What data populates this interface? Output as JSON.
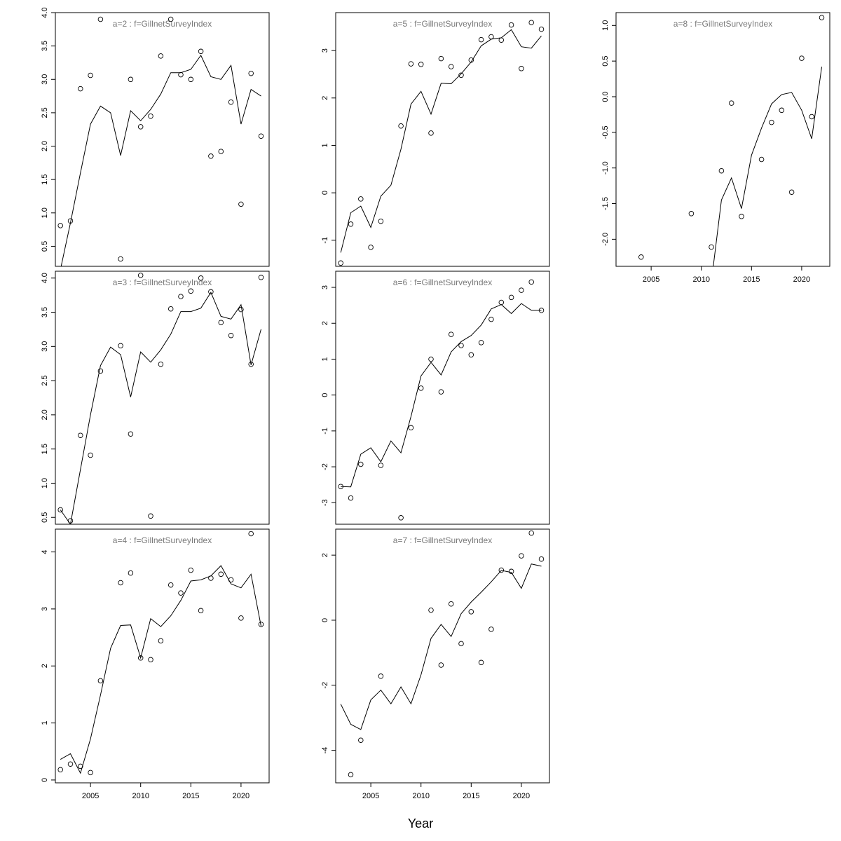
{
  "figure": {
    "xlabel": "Year"
  },
  "chart_data": [
    {
      "type": "scatter",
      "title": "a=2  :  f=GillnetSurveyIndex",
      "xlim": [
        2001.5,
        2022.8
      ],
      "ylim": [
        0.2,
        4.0
      ],
      "yticks": [
        0.5,
        1.0,
        1.5,
        2.0,
        2.5,
        3.0,
        3.5,
        4.0
      ],
      "ytick_labels": [
        "0.5",
        "1.0",
        "1.5",
        "2.0",
        "2.5",
        "3.0",
        "3.5",
        "4.0"
      ],
      "xticks": [],
      "xtick_labels": [],
      "series": [
        {
          "kind": "points",
          "x": [
            2002,
            2003,
            2004,
            2005,
            2006,
            2008,
            2009,
            2010,
            2011,
            2012,
            2013,
            2014,
            2015,
            2016,
            2017,
            2018,
            2019,
            2020,
            2021,
            2022
          ],
          "y": [
            0.81,
            0.88,
            2.86,
            3.06,
            3.9,
            0.31,
            3.0,
            2.29,
            2.45,
            3.35,
            3.9,
            3.07,
            3.0,
            3.42,
            1.85,
            1.92,
            2.66,
            1.13,
            3.09,
            2.15
          ]
        },
        {
          "kind": "line",
          "x": [
            2002,
            2003,
            2004,
            2005,
            2006,
            2007,
            2008,
            2009,
            2010,
            2011,
            2012,
            2013,
            2014,
            2015,
            2016,
            2017,
            2018,
            2019,
            2020,
            2021,
            2022
          ],
          "y": [
            0.15,
            0.85,
            1.6,
            2.33,
            2.6,
            2.5,
            1.86,
            2.53,
            2.38,
            2.55,
            2.78,
            3.1,
            3.1,
            3.15,
            3.36,
            3.04,
            3.0,
            3.21,
            2.33,
            2.85,
            2.75
          ]
        }
      ]
    },
    {
      "type": "scatter",
      "title": "a=3  :  f=GillnetSurveyIndex",
      "xlim": [
        2001.5,
        2022.8
      ],
      "ylim": [
        0.4,
        4.1
      ],
      "yticks": [
        0.5,
        1.0,
        1.5,
        2.0,
        2.5,
        3.0,
        3.5,
        4.0
      ],
      "ytick_labels": [
        "0.5",
        "1.0",
        "1.5",
        "2.0",
        "2.5",
        "3.0",
        "3.5",
        "4.0"
      ],
      "xticks": [],
      "xtick_labels": [],
      "series": [
        {
          "kind": "points",
          "x": [
            2002,
            2003,
            2004,
            2005,
            2006,
            2008,
            2009,
            2010,
            2011,
            2012,
            2013,
            2014,
            2015,
            2016,
            2017,
            2018,
            2019,
            2020,
            2021,
            2022
          ],
          "y": [
            0.61,
            0.45,
            1.7,
            1.41,
            2.64,
            3.01,
            1.72,
            4.04,
            0.52,
            2.74,
            3.55,
            3.73,
            3.81,
            4.0,
            3.8,
            3.35,
            3.16,
            3.54,
            2.74,
            4.01
          ]
        },
        {
          "kind": "line",
          "x": [
            2002,
            2003,
            2004,
            2005,
            2006,
            2007,
            2008,
            2009,
            2010,
            2011,
            2012,
            2013,
            2014,
            2015,
            2016,
            2017,
            2018,
            2019,
            2020,
            2021,
            2022
          ],
          "y": [
            0.61,
            0.4,
            1.2,
            2.0,
            2.72,
            2.99,
            2.88,
            2.26,
            2.92,
            2.77,
            2.95,
            3.18,
            3.51,
            3.51,
            3.56,
            3.79,
            3.44,
            3.4,
            3.61,
            2.73,
            3.25
          ]
        }
      ]
    },
    {
      "type": "scatter",
      "title": "a=4  :  f=GillnetSurveyIndex",
      "xlim": [
        2001.5,
        2022.8
      ],
      "ylim": [
        -0.05,
        4.4
      ],
      "yticks": [
        0,
        1,
        2,
        3,
        4
      ],
      "ytick_labels": [
        "0",
        "1",
        "2",
        "3",
        "4"
      ],
      "xticks": [
        2005,
        2010,
        2015,
        2020
      ],
      "xtick_labels": [
        "2005",
        "2010",
        "2015",
        "2020"
      ],
      "series": [
        {
          "kind": "points",
          "x": [
            2002,
            2003,
            2004,
            2005,
            2006,
            2008,
            2009,
            2010,
            2011,
            2012,
            2013,
            2014,
            2015,
            2016,
            2017,
            2018,
            2019,
            2020,
            2021,
            2022
          ],
          "y": [
            0.18,
            0.28,
            0.24,
            0.13,
            1.74,
            3.46,
            3.63,
            2.14,
            2.11,
            2.44,
            3.42,
            3.28,
            3.68,
            2.97,
            3.54,
            3.61,
            3.51,
            2.84,
            4.32,
            2.73
          ]
        },
        {
          "kind": "line",
          "x": [
            2002,
            2003,
            2004,
            2005,
            2006,
            2007,
            2008,
            2009,
            2010,
            2011,
            2012,
            2013,
            2014,
            2015,
            2016,
            2017,
            2018,
            2019,
            2020,
            2021,
            2022
          ],
          "y": [
            0.36,
            0.46,
            0.12,
            0.72,
            1.49,
            2.31,
            2.71,
            2.72,
            2.14,
            2.83,
            2.69,
            2.88,
            3.15,
            3.49,
            3.51,
            3.58,
            3.76,
            3.44,
            3.37,
            3.61,
            2.7
          ]
        }
      ]
    },
    {
      "type": "scatter",
      "title": "a=5  :  f=GillnetSurveyIndex",
      "xlim": [
        2001.5,
        2022.8
      ],
      "ylim": [
        -1.55,
        3.8
      ],
      "yticks": [
        -1,
        0,
        1,
        2,
        3
      ],
      "ytick_labels": [
        "-1",
        "0",
        "1",
        "2",
        "3"
      ],
      "xticks": [],
      "xtick_labels": [],
      "series": [
        {
          "kind": "points",
          "x": [
            2002,
            2003,
            2004,
            2005,
            2006,
            2008,
            2009,
            2010,
            2011,
            2012,
            2013,
            2014,
            2015,
            2016,
            2017,
            2018,
            2019,
            2020,
            2021,
            2022
          ],
          "y": [
            -1.48,
            -0.66,
            -0.13,
            -1.15,
            -0.6,
            1.41,
            2.72,
            2.71,
            1.26,
            2.83,
            2.66,
            2.48,
            2.8,
            3.23,
            3.29,
            3.22,
            3.54,
            2.62,
            3.59,
            3.45
          ]
        },
        {
          "kind": "line",
          "x": [
            2002,
            2003,
            2004,
            2005,
            2006,
            2007,
            2008,
            2009,
            2010,
            2011,
            2012,
            2013,
            2014,
            2015,
            2016,
            2017,
            2018,
            2019,
            2020,
            2021,
            2022
          ],
          "y": [
            -1.26,
            -0.42,
            -0.28,
            -0.73,
            -0.07,
            0.16,
            0.92,
            1.87,
            2.14,
            1.66,
            2.31,
            2.3,
            2.51,
            2.76,
            3.1,
            3.24,
            3.27,
            3.44,
            3.08,
            3.05,
            3.31
          ]
        }
      ]
    },
    {
      "type": "scatter",
      "title": "a=6  :  f=GillnetSurveyIndex",
      "xlim": [
        2001.5,
        2022.8
      ],
      "ylim": [
        -3.6,
        3.45
      ],
      "yticks": [
        -3,
        -2,
        -1,
        0,
        1,
        2,
        3
      ],
      "ytick_labels": [
        "-3",
        "-2",
        "-1",
        "0",
        "1",
        "2",
        "3"
      ],
      "xticks": [],
      "xtick_labels": [],
      "series": [
        {
          "kind": "points",
          "x": [
            2002,
            2003,
            2004,
            2006,
            2008,
            2009,
            2010,
            2011,
            2012,
            2013,
            2014,
            2015,
            2016,
            2017,
            2018,
            2019,
            2020,
            2021,
            2022
          ],
          "y": [
            -2.55,
            -2.87,
            -1.93,
            -1.96,
            -3.42,
            -0.91,
            0.19,
            1.0,
            0.09,
            1.69,
            1.38,
            1.12,
            1.46,
            2.11,
            2.58,
            2.72,
            2.92,
            3.15,
            2.36
          ]
        },
        {
          "kind": "line",
          "x": [
            2002,
            2003,
            2004,
            2005,
            2006,
            2007,
            2008,
            2009,
            2010,
            2011,
            2012,
            2013,
            2014,
            2015,
            2016,
            2017,
            2018,
            2019,
            2020,
            2021,
            2022
          ],
          "y": [
            -2.55,
            -2.56,
            -1.65,
            -1.47,
            -1.86,
            -1.28,
            -1.61,
            -0.6,
            0.53,
            0.91,
            0.56,
            1.2,
            1.49,
            1.66,
            1.95,
            2.4,
            2.52,
            2.27,
            2.55,
            2.36,
            2.36
          ]
        }
      ]
    },
    {
      "type": "scatter",
      "title": "a=7  :  f=GillnetSurveyIndex",
      "xlim": [
        2001.5,
        2022.8
      ],
      "ylim": [
        -5.0,
        2.8
      ],
      "yticks": [
        -4,
        -2,
        0,
        2
      ],
      "ytick_labels": [
        "-4",
        "-2",
        "0",
        "2"
      ],
      "xticks": [
        2005,
        2010,
        2015,
        2020
      ],
      "xtick_labels": [
        "2005",
        "2010",
        "2015",
        "2020"
      ],
      "series": [
        {
          "kind": "points",
          "x": [
            2003,
            2004,
            2006,
            2011,
            2012,
            2013,
            2014,
            2015,
            2016,
            2017,
            2018,
            2019,
            2020,
            2021,
            2022
          ],
          "y": [
            -4.75,
            -3.69,
            -1.72,
            0.31,
            -1.38,
            0.5,
            -0.72,
            0.26,
            -1.3,
            -0.28,
            1.54,
            1.5,
            1.98,
            2.68,
            1.88
          ]
        },
        {
          "kind": "line",
          "x": [
            2002,
            2003,
            2004,
            2005,
            2006,
            2007,
            2008,
            2009,
            2010,
            2011,
            2012,
            2013,
            2014,
            2015,
            2016,
            2017,
            2018,
            2019,
            2020,
            2021,
            2022
          ],
          "y": [
            -2.58,
            -3.2,
            -3.36,
            -2.45,
            -2.15,
            -2.57,
            -2.05,
            -2.57,
            -1.68,
            -0.56,
            -0.13,
            -0.5,
            0.2,
            0.56,
            0.86,
            1.18,
            1.53,
            1.47,
            0.98,
            1.73,
            1.66
          ]
        }
      ]
    },
    {
      "type": "scatter",
      "title": "a=8  :  f=GillnetSurveyIndex",
      "xlim": [
        2001.5,
        2022.8
      ],
      "ylim": [
        -2.38,
        1.18
      ],
      "yticks": [
        -2.0,
        -1.5,
        -1.0,
        -0.5,
        0.0,
        0.5,
        1.0
      ],
      "ytick_labels": [
        "-2.0",
        "-1.5",
        "-1.0",
        "-0.5",
        "0.0",
        "0.5",
        "1.0"
      ],
      "xticks": [
        2005,
        2010,
        2015,
        2020
      ],
      "xtick_labels": [
        "2005",
        "2010",
        "2015",
        "2020"
      ],
      "series": [
        {
          "kind": "points",
          "x": [
            2004,
            2009,
            2011,
            2012,
            2013,
            2014,
            2016,
            2017,
            2018,
            2019,
            2020,
            2021,
            2022
          ],
          "y": [
            -2.25,
            -1.64,
            -2.11,
            -1.04,
            -0.09,
            -1.68,
            -0.88,
            -0.36,
            -0.19,
            -1.34,
            0.54,
            -0.28,
            1.11
          ]
        },
        {
          "kind": "line",
          "x": [
            2011,
            2012,
            2013,
            2014,
            2015,
            2016,
            2017,
            2018,
            2019,
            2020,
            2021,
            2022
          ],
          "y": [
            -2.6,
            -1.45,
            -1.14,
            -1.57,
            -0.82,
            -0.44,
            -0.1,
            0.03,
            0.06,
            -0.19,
            -0.59,
            0.42
          ]
        }
      ]
    }
  ]
}
